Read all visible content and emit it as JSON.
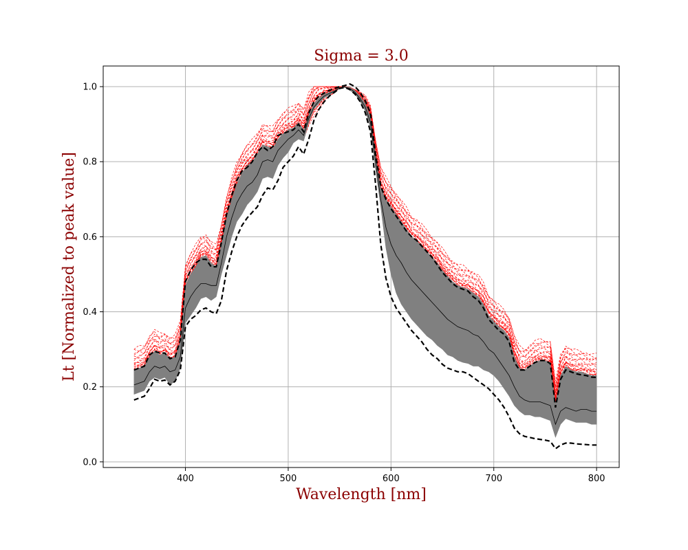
{
  "chart_data": {
    "type": "line",
    "title": "Sigma = 3.0",
    "xlabel": "Wavelength [nm]",
    "ylabel": "Lt [Normalized to peak value]",
    "xlim": [
      320,
      822
    ],
    "ylim": [
      -0.015,
      1.055
    ],
    "xticks": [
      400,
      500,
      600,
      700,
      800
    ],
    "yticks": [
      0.0,
      0.2,
      0.4,
      0.6,
      0.8,
      1.0
    ],
    "xtick_labels": [
      "400",
      "500",
      "600",
      "700",
      "800"
    ],
    "ytick_labels": [
      "0.0",
      "0.2",
      "0.4",
      "0.6",
      "0.8",
      "1.0"
    ],
    "grid": true,
    "colors": {
      "band": "#808080",
      "red_lines": "#ff0000",
      "black_lines": "#000000",
      "title": "#8b0000",
      "axis_label": "#8b0000"
    },
    "x": [
      350,
      355,
      360,
      365,
      370,
      375,
      380,
      385,
      390,
      395,
      400,
      405,
      410,
      415,
      420,
      425,
      430,
      435,
      440,
      445,
      450,
      455,
      460,
      465,
      470,
      475,
      480,
      485,
      490,
      495,
      500,
      505,
      510,
      515,
      520,
      525,
      530,
      535,
      540,
      545,
      550,
      555,
      560,
      565,
      570,
      575,
      580,
      585,
      590,
      595,
      600,
      605,
      610,
      615,
      620,
      625,
      630,
      635,
      640,
      645,
      650,
      655,
      660,
      665,
      670,
      675,
      680,
      685,
      690,
      695,
      700,
      705,
      710,
      715,
      720,
      725,
      730,
      735,
      740,
      745,
      750,
      755,
      760,
      765,
      770,
      775,
      780,
      785,
      790,
      795,
      800
    ],
    "series": [
      {
        "role": "band",
        "style": "fill",
        "lower": [
          0.18,
          0.185,
          0.19,
          0.215,
          0.225,
          0.22,
          0.225,
          0.205,
          0.215,
          0.25,
          0.37,
          0.39,
          0.41,
          0.435,
          0.44,
          0.43,
          0.44,
          0.5,
          0.55,
          0.6,
          0.64,
          0.66,
          0.685,
          0.7,
          0.72,
          0.755,
          0.76,
          0.755,
          0.79,
          0.81,
          0.825,
          0.85,
          0.86,
          0.855,
          0.905,
          0.94,
          0.955,
          0.97,
          0.978,
          0.985,
          0.995,
          0.998,
          0.99,
          0.98,
          0.96,
          0.935,
          0.89,
          0.78,
          0.68,
          0.57,
          0.5,
          0.45,
          0.42,
          0.4,
          0.38,
          0.365,
          0.35,
          0.335,
          0.325,
          0.31,
          0.3,
          0.285,
          0.28,
          0.27,
          0.265,
          0.262,
          0.255,
          0.255,
          0.245,
          0.24,
          0.23,
          0.215,
          0.195,
          0.175,
          0.15,
          0.135,
          0.125,
          0.125,
          0.12,
          0.12,
          0.115,
          0.11,
          0.065,
          0.1,
          0.115,
          0.11,
          0.105,
          0.105,
          0.105,
          0.1,
          0.1
        ]
      },
      {
        "role": "band",
        "style": "fill",
        "upper": [
          0.245,
          0.25,
          0.255,
          0.28,
          0.295,
          0.285,
          0.29,
          0.275,
          0.28,
          0.32,
          0.47,
          0.5,
          0.52,
          0.545,
          0.55,
          0.53,
          0.52,
          0.58,
          0.65,
          0.7,
          0.74,
          0.77,
          0.79,
          0.8,
          0.82,
          0.845,
          0.84,
          0.835,
          0.86,
          0.875,
          0.885,
          0.89,
          0.905,
          0.885,
          0.925,
          0.955,
          0.97,
          0.98,
          0.985,
          0.99,
          0.998,
          1.0,
          0.998,
          0.99,
          0.975,
          0.955,
          0.92,
          0.82,
          0.73,
          0.7,
          0.68,
          0.66,
          0.64,
          0.62,
          0.6,
          0.59,
          0.575,
          0.56,
          0.545,
          0.53,
          0.51,
          0.495,
          0.48,
          0.47,
          0.465,
          0.46,
          0.45,
          0.44,
          0.42,
          0.39,
          0.375,
          0.36,
          0.35,
          0.33,
          0.28,
          0.25,
          0.245,
          0.255,
          0.265,
          0.27,
          0.27,
          0.265,
          0.155,
          0.23,
          0.255,
          0.245,
          0.24,
          0.24,
          0.235,
          0.23,
          0.23
        ]
      },
      {
        "role": "mean",
        "style": "solid-thin",
        "values": [
          0.205,
          0.21,
          0.215,
          0.24,
          0.255,
          0.25,
          0.255,
          0.24,
          0.245,
          0.28,
          0.41,
          0.44,
          0.46,
          0.475,
          0.475,
          0.47,
          0.47,
          0.53,
          0.6,
          0.65,
          0.69,
          0.715,
          0.735,
          0.745,
          0.765,
          0.8,
          0.805,
          0.8,
          0.83,
          0.845,
          0.86,
          0.87,
          0.885,
          0.87,
          0.915,
          0.945,
          0.962,
          0.975,
          0.982,
          0.988,
          0.997,
          0.999,
          0.995,
          0.985,
          0.968,
          0.945,
          0.905,
          0.8,
          0.7,
          0.625,
          0.58,
          0.55,
          0.53,
          0.505,
          0.485,
          0.47,
          0.455,
          0.44,
          0.425,
          0.41,
          0.395,
          0.38,
          0.37,
          0.36,
          0.355,
          0.35,
          0.34,
          0.335,
          0.32,
          0.3,
          0.29,
          0.27,
          0.25,
          0.23,
          0.2,
          0.175,
          0.165,
          0.16,
          0.16,
          0.16,
          0.155,
          0.15,
          0.1,
          0.135,
          0.145,
          0.14,
          0.135,
          0.14,
          0.14,
          0.135,
          0.135
        ]
      },
      {
        "role": "upper-bound",
        "style": "dashed-thick",
        "values": [
          0.245,
          0.25,
          0.255,
          0.285,
          0.295,
          0.29,
          0.29,
          0.275,
          0.28,
          0.325,
          0.48,
          0.51,
          0.53,
          0.54,
          0.54,
          0.52,
          0.52,
          0.585,
          0.66,
          0.71,
          0.75,
          0.775,
          0.785,
          0.8,
          0.825,
          0.84,
          0.83,
          0.84,
          0.87,
          0.875,
          0.88,
          0.885,
          0.9,
          0.88,
          0.93,
          0.96,
          0.975,
          0.983,
          0.99,
          0.995,
          1.0,
          1.003,
          1.007,
          1.0,
          0.985,
          0.962,
          0.93,
          0.82,
          0.735,
          0.7,
          0.675,
          0.655,
          0.635,
          0.615,
          0.6,
          0.59,
          0.575,
          0.56,
          0.545,
          0.525,
          0.505,
          0.49,
          0.475,
          0.465,
          0.46,
          0.455,
          0.44,
          0.43,
          0.41,
          0.38,
          0.365,
          0.35,
          0.34,
          0.32,
          0.265,
          0.245,
          0.245,
          0.255,
          0.265,
          0.27,
          0.27,
          0.262,
          0.145,
          0.22,
          0.245,
          0.24,
          0.235,
          0.232,
          0.23,
          0.226,
          0.225
        ]
      },
      {
        "role": "lower-bound",
        "style": "dashed-thick",
        "values": [
          0.165,
          0.17,
          0.175,
          0.195,
          0.22,
          0.215,
          0.218,
          0.205,
          0.215,
          0.245,
          0.36,
          0.38,
          0.39,
          0.405,
          0.41,
          0.4,
          0.395,
          0.43,
          0.51,
          0.56,
          0.6,
          0.63,
          0.65,
          0.665,
          0.68,
          0.71,
          0.73,
          0.725,
          0.75,
          0.785,
          0.8,
          0.815,
          0.84,
          0.82,
          0.86,
          0.91,
          0.94,
          0.96,
          0.975,
          0.985,
          0.995,
          0.998,
          0.992,
          0.98,
          0.96,
          0.93,
          0.88,
          0.74,
          0.58,
          0.49,
          0.44,
          0.41,
          0.39,
          0.37,
          0.35,
          0.335,
          0.32,
          0.3,
          0.285,
          0.275,
          0.26,
          0.25,
          0.245,
          0.24,
          0.24,
          0.235,
          0.225,
          0.215,
          0.205,
          0.195,
          0.18,
          0.165,
          0.145,
          0.12,
          0.09,
          0.075,
          0.068,
          0.065,
          0.062,
          0.06,
          0.058,
          0.055,
          0.035,
          0.045,
          0.05,
          0.05,
          0.048,
          0.047,
          0.046,
          0.045,
          0.045
        ]
      }
    ],
    "red_variants": {
      "style": "dashed-thin",
      "offsets_low": [
        0.04,
        0.035,
        0.03,
        0.025,
        0.02,
        0.015,
        0.01,
        0.005,
        0.0,
        -0.005,
        -0.01,
        -0.015,
        -0.02,
        -0.025,
        -0.03
      ],
      "offsets_high": [
        0.055,
        0.05,
        0.045,
        0.04,
        0.035,
        0.03,
        0.025,
        0.02,
        0.015,
        0.01,
        0.005,
        0.0,
        -0.005,
        -0.01,
        -0.015
      ]
    }
  }
}
